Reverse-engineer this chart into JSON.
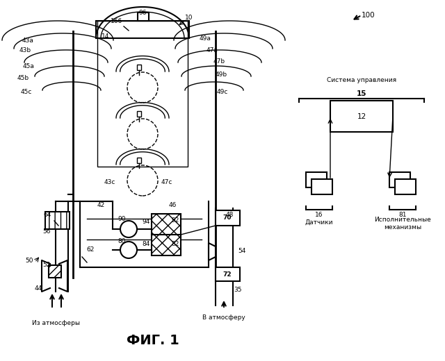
{
  "title": "ФИГ. 1",
  "bg_color": "#ffffff",
  "label_100": "100",
  "label_fig": "ФИГ. 1",
  "arrow_from_atm": "Из атмосферы",
  "arrow_to_atm": "В атмосферу",
  "ctrl_system_label": "Система управления",
  "ctrl_label_15": "15",
  "ctrl_label_12": "12",
  "ctrl_label_16": "16",
  "ctrl_label_sensors": "Датчики",
  "ctrl_label_81": "81",
  "ctrl_label_actuators": "Исполнительные\nмеханизмы"
}
